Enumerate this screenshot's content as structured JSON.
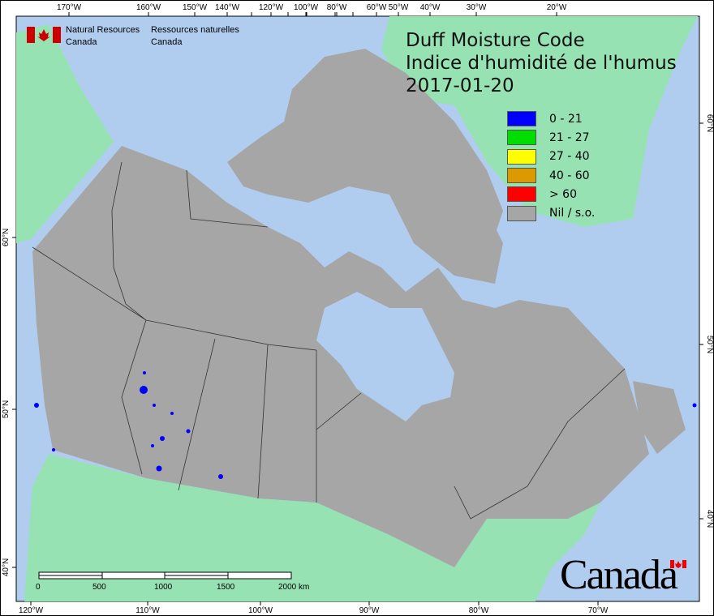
{
  "title": {
    "line1": "Duff Moisture Code",
    "line2": "Indice d'humidité de l'humus",
    "line3": "2017-01-20"
  },
  "agency": {
    "en_line1": "Natural Resources",
    "en_line2": "Canada",
    "fr_line1": "Ressources naturelles",
    "fr_line2": "Canada"
  },
  "wordmark": "Canada",
  "legend": [
    {
      "label": "0 - 21",
      "color": "#0000ff"
    },
    {
      "label": "21 - 27",
      "color": "#00dd00"
    },
    {
      "label": "27 - 40",
      "color": "#ffff00"
    },
    {
      "label": "40 - 60",
      "color": "#dd9900"
    },
    {
      "label": "> 60",
      "color": "#ff0000"
    },
    {
      "label": "Nil / s.o.",
      "color": "#a6a6a6"
    }
  ],
  "colors": {
    "water": "#b0cdef",
    "land_other": "#97e2b3",
    "canada_nil": "#a6a6a6",
    "dmc_low": "#0000ff"
  },
  "scale_bar": {
    "ticks": [
      "0",
      "500",
      "1000",
      "1500",
      "2000 km"
    ]
  },
  "axes": {
    "top": [
      "170°W",
      "160°W",
      "150°W",
      "140°W",
      "120°W",
      "100°W",
      "80°W",
      "60°W",
      "50°W",
      "40°W",
      "30°W",
      "20°W"
    ],
    "bottom": [
      "120°W",
      "110°W",
      "100°W",
      "90°W",
      "80°W",
      "70°W"
    ],
    "left": [
      "60°N",
      "50°N",
      "40°N"
    ],
    "right": [
      "60°N",
      "50°N",
      "40°N"
    ]
  }
}
